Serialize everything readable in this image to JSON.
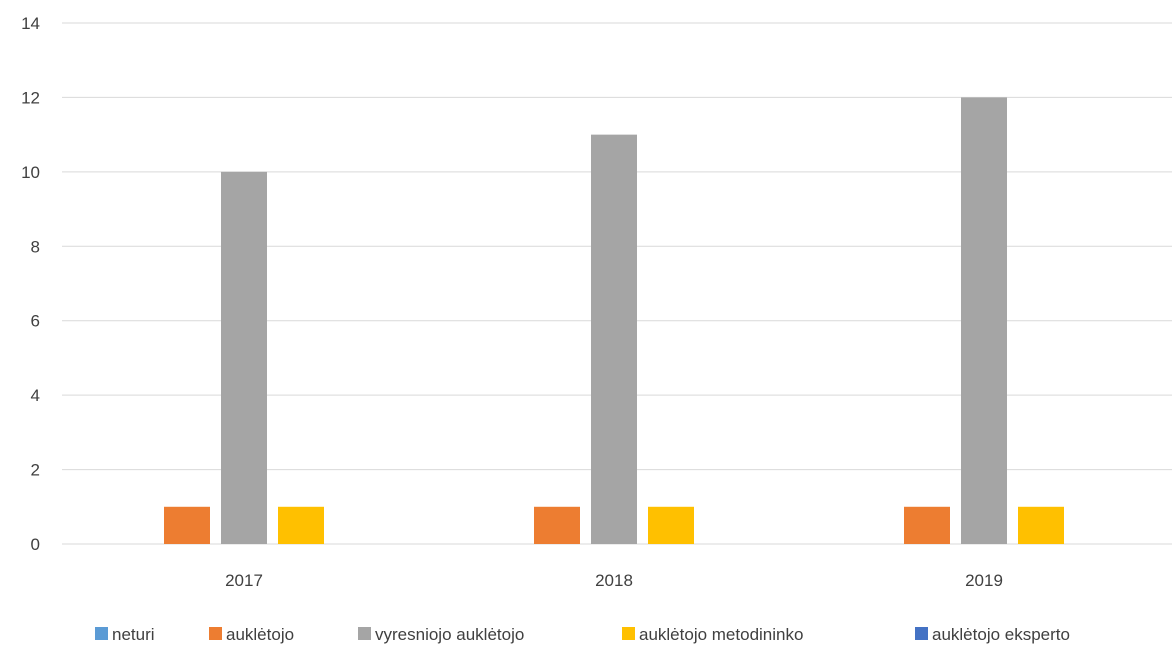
{
  "chart_data": {
    "type": "bar",
    "categories": [
      "2017",
      "2018",
      "2019"
    ],
    "series": [
      {
        "name": "neturi",
        "values": [
          0,
          0,
          0
        ],
        "color": "#5B9BD5"
      },
      {
        "name": "auklėtojo",
        "values": [
          1,
          1,
          1
        ],
        "color": "#ED7D31"
      },
      {
        "name": "vyresniojo auklėtojo",
        "values": [
          10,
          11,
          12
        ],
        "color": "#A5A5A5"
      },
      {
        "name": "auklėtojo metodininko",
        "values": [
          1,
          1,
          1
        ],
        "color": "#FFC000"
      },
      {
        "name": "auklėtojo eksperto",
        "values": [
          0,
          0,
          0
        ],
        "color": "#4472C4"
      }
    ],
    "ylim": [
      0,
      14
    ],
    "yticks": [
      "0",
      "2",
      "4",
      "6",
      "8",
      "10",
      "12",
      "14"
    ],
    "grid": true,
    "legend_position": "bottom"
  }
}
